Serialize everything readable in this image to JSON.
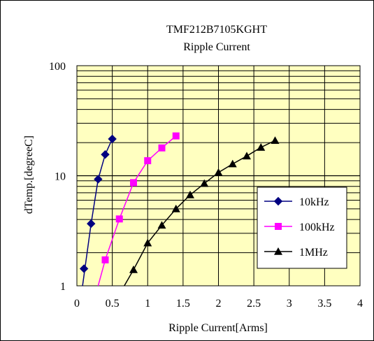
{
  "chart_data": {
    "type": "line",
    "title": "TMF212B7105KGHT",
    "subtitle": "Ripple Current",
    "xlabel": "Ripple Current[Arms]",
    "ylabel": "dTemp.[degreeC]",
    "xlim": [
      0,
      4
    ],
    "ylim": [
      1,
      100
    ],
    "yscale": "log",
    "x_ticks": [
      0,
      0.5,
      1,
      1.5,
      2,
      2.5,
      3,
      3.5,
      4
    ],
    "x_tick_labels": [
      "0",
      "0.5",
      "1",
      "1.5",
      "2",
      "2.5",
      "3",
      "3.5",
      "4"
    ],
    "y_ticks": [
      1,
      10,
      100
    ],
    "y_tick_labels": [
      "1",
      "10",
      "100"
    ],
    "grid": true,
    "plot_background": "#ffffc0",
    "legend_position": "right-center",
    "series": [
      {
        "name": "10kHz",
        "color": "#000080",
        "marker": "diamond",
        "x": [
          0.1,
          0.2,
          0.3,
          0.4,
          0.5
        ],
        "y": [
          1.43,
          3.67,
          9.3,
          15.6,
          21.6
        ]
      },
      {
        "name": "100kHz",
        "color": "#ff00ff",
        "marker": "square",
        "x": [
          0.4,
          0.6,
          0.8,
          1.0,
          1.2,
          1.4
        ],
        "y": [
          1.72,
          4.05,
          8.65,
          13.7,
          17.9,
          23.0
        ]
      },
      {
        "name": "1MHz",
        "color": "#000000",
        "marker": "triangle",
        "x": [
          0.8,
          1.0,
          1.2,
          1.4,
          1.6,
          1.8,
          2.0,
          2.2,
          2.4,
          2.6,
          2.8
        ],
        "y": [
          1.4,
          2.45,
          3.55,
          5.0,
          6.7,
          8.5,
          10.7,
          12.8,
          15.1,
          18.1,
          20.9
        ]
      }
    ],
    "fit_curves": [
      {
        "series": "10kHz",
        "x": [
          0.08,
          0.2,
          0.3,
          0.4,
          0.5
        ],
        "y": [
          1.0,
          3.67,
          9.3,
          15.6,
          21.6
        ]
      },
      {
        "series": "100kHz",
        "x": [
          0.3,
          0.4,
          0.6,
          0.8,
          1.0,
          1.2,
          1.4
        ],
        "y": [
          1.0,
          1.72,
          4.05,
          8.65,
          13.7,
          17.9,
          23.0
        ]
      },
      {
        "series": "1MHz",
        "x": [
          0.67,
          0.8,
          1.0,
          1.2,
          1.4,
          1.6,
          1.8,
          2.0,
          2.2,
          2.4,
          2.6,
          2.8
        ],
        "y": [
          1.0,
          1.4,
          2.45,
          3.55,
          5.0,
          6.7,
          8.5,
          10.7,
          12.8,
          15.1,
          18.1,
          20.9
        ]
      }
    ]
  }
}
